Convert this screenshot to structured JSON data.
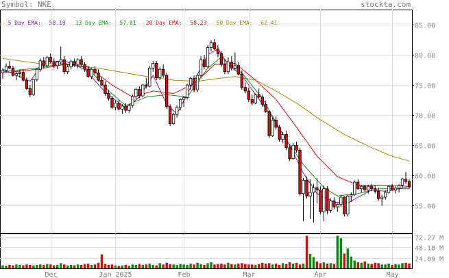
{
  "header": {
    "symbol_text": "Symbol: NKE",
    "site": "stockta.com"
  },
  "legend": {
    "ema5": {
      "label": "5 Day EMA:",
      "value": "58.19",
      "color": "#7a1fa2"
    },
    "ema13": {
      "label": "13 Day EMA:",
      "value": "57.81",
      "color": "#1e8a1e"
    },
    "ema20": {
      "label": "20 Day EMA:",
      "value": "58.23",
      "color": "#d01010"
    },
    "ema50": {
      "label": "50 Day EMA:",
      "value": "62.41",
      "color": "#a08a10"
    }
  },
  "colors": {
    "up_candle": "#ffffff",
    "down_candle": "#cc1111",
    "candle_outline": "#000000",
    "volume_up": "#118811",
    "volume_down": "#cc1111",
    "grid": "#dddddd",
    "frame": "#000000"
  },
  "chart_data": {
    "type": "candlestick",
    "price_axis": {
      "ticks": [
        "85.00",
        "80.00",
        "75.00",
        "70.00",
        "65.00",
        "60.00",
        "55.00"
      ],
      "range": [
        50.5,
        87.5
      ]
    },
    "volume_axis": {
      "ticks": [
        "72.27 M",
        "48.18 M",
        "24.09 M"
      ],
      "range": [
        0,
        80
      ]
    },
    "x_labels": [
      "Dec",
      "Jan 2025",
      "Feb",
      "Mar",
      "Apr",
      "May"
    ],
    "x_label_index": [
      14,
      33,
      53,
      72,
      93,
      114
    ],
    "candles": [
      [
        77.0,
        77.8,
        76.0,
        77.4
      ],
      [
        77.4,
        78.6,
        77.0,
        78.1
      ],
      [
        78.1,
        79.0,
        77.6,
        77.8
      ],
      [
        77.8,
        78.2,
        76.4,
        76.6
      ],
      [
        76.6,
        77.2,
        75.8,
        76.9
      ],
      [
        76.9,
        77.6,
        76.2,
        77.1
      ],
      [
        77.1,
        77.5,
        75.6,
        75.8
      ],
      [
        75.8,
        76.2,
        74.2,
        74.4
      ],
      [
        74.4,
        75.0,
        73.0,
        73.4
      ],
      [
        73.4,
        76.0,
        73.2,
        75.9
      ],
      [
        75.9,
        77.8,
        75.6,
        77.6
      ],
      [
        77.6,
        79.4,
        77.2,
        79.0
      ],
      [
        79.0,
        79.6,
        77.8,
        78.2
      ],
      [
        78.2,
        79.8,
        78.0,
        79.6
      ],
      [
        79.6,
        80.2,
        78.6,
        78.8
      ],
      [
        78.8,
        79.4,
        77.8,
        78.2
      ],
      [
        78.2,
        79.0,
        77.6,
        78.8
      ],
      [
        78.8,
        81.4,
        78.4,
        79.2
      ],
      [
        79.2,
        79.8,
        76.8,
        77.2
      ],
      [
        77.2,
        78.4,
        76.8,
        78.0
      ],
      [
        78.0,
        79.2,
        77.6,
        78.9
      ],
      [
        78.9,
        79.4,
        78.0,
        78.4
      ],
      [
        78.4,
        79.4,
        77.8,
        79.2
      ],
      [
        79.2,
        79.8,
        78.2,
        78.4
      ],
      [
        78.4,
        78.8,
        77.2,
        77.6
      ],
      [
        77.6,
        78.2,
        76.2,
        76.4
      ],
      [
        76.4,
        77.8,
        76.0,
        77.6
      ],
      [
        77.6,
        78.2,
        76.6,
        77.0
      ],
      [
        77.0,
        77.6,
        75.6,
        75.8
      ],
      [
        75.8,
        76.4,
        74.8,
        75.0
      ],
      [
        75.0,
        75.6,
        73.2,
        73.6
      ],
      [
        73.6,
        74.2,
        72.4,
        72.8
      ],
      [
        72.8,
        73.2,
        71.0,
        71.3
      ],
      [
        71.3,
        72.4,
        70.8,
        72.0
      ],
      [
        72.0,
        72.6,
        70.8,
        71.0
      ],
      [
        71.0,
        71.8,
        70.2,
        71.5
      ],
      [
        71.5,
        72.0,
        70.4,
        70.8
      ],
      [
        70.8,
        71.8,
        70.4,
        71.6
      ],
      [
        71.6,
        73.4,
        71.2,
        73.1
      ],
      [
        73.1,
        74.6,
        72.6,
        74.3
      ],
      [
        74.3,
        74.8,
        72.8,
        73.2
      ],
      [
        73.2,
        75.2,
        73.0,
        75.0
      ],
      [
        75.0,
        76.2,
        74.4,
        74.8
      ],
      [
        74.8,
        78.2,
        74.6,
        77.8
      ],
      [
        77.8,
        79.0,
        77.2,
        78.6
      ],
      [
        78.6,
        79.0,
        75.8,
        76.2
      ],
      [
        76.2,
        78.0,
        75.8,
        77.6
      ],
      [
        77.6,
        78.4,
        76.2,
        76.6
      ],
      [
        76.6,
        77.0,
        71.0,
        71.4
      ],
      [
        71.4,
        71.8,
        68.2,
        68.6
      ],
      [
        68.6,
        70.4,
        68.4,
        70.1
      ],
      [
        70.1,
        71.6,
        69.6,
        71.3
      ],
      [
        71.3,
        72.8,
        70.8,
        72.6
      ],
      [
        72.6,
        73.2,
        71.4,
        72.9
      ],
      [
        72.9,
        75.2,
        72.6,
        75.0
      ],
      [
        75.0,
        76.4,
        74.2,
        76.1
      ],
      [
        76.1,
        76.6,
        73.8,
        74.2
      ],
      [
        74.2,
        76.8,
        73.8,
        76.6
      ],
      [
        76.6,
        79.8,
        76.2,
        79.2
      ],
      [
        79.2,
        80.0,
        77.6,
        78.0
      ],
      [
        78.0,
        81.6,
        77.8,
        81.2
      ],
      [
        81.2,
        82.4,
        80.6,
        82.0
      ],
      [
        82.0,
        82.6,
        80.8,
        81.0
      ],
      [
        81.0,
        81.6,
        79.6,
        80.2
      ],
      [
        80.2,
        80.6,
        78.0,
        78.4
      ],
      [
        78.4,
        79.2,
        76.8,
        77.2
      ],
      [
        77.2,
        79.6,
        76.8,
        78.8
      ],
      [
        78.8,
        79.8,
        77.4,
        77.8
      ],
      [
        77.8,
        80.4,
        77.4,
        78.2
      ],
      [
        78.2,
        78.8,
        76.6,
        76.8
      ],
      [
        76.8,
        77.4,
        74.2,
        74.6
      ],
      [
        74.6,
        75.4,
        73.6,
        74.0
      ],
      [
        74.0,
        74.6,
        72.2,
        72.6
      ],
      [
        72.6,
        73.4,
        71.6,
        72.0
      ],
      [
        72.0,
        73.6,
        71.8,
        73.4
      ],
      [
        73.4,
        74.4,
        72.8,
        73.0
      ],
      [
        73.0,
        73.4,
        71.4,
        71.8
      ],
      [
        71.8,
        72.4,
        70.4,
        70.6
      ],
      [
        70.6,
        70.8,
        66.2,
        66.6
      ],
      [
        66.6,
        69.6,
        66.4,
        69.2
      ],
      [
        69.2,
        69.8,
        67.6,
        68.0
      ],
      [
        68.0,
        68.4,
        65.6,
        66.0
      ],
      [
        66.0,
        67.2,
        65.4,
        66.8
      ],
      [
        66.8,
        67.4,
        64.2,
        64.6
      ],
      [
        64.6,
        65.2,
        62.4,
        62.8
      ],
      [
        62.8,
        65.4,
        62.6,
        65.0
      ],
      [
        65.0,
        65.6,
        63.8,
        64.2
      ],
      [
        64.2,
        64.6,
        56.6,
        57.0
      ],
      [
        57.0,
        59.6,
        52.4,
        59.2
      ],
      [
        59.2,
        59.8,
        56.2,
        56.6
      ],
      [
        56.6,
        59.4,
        52.8,
        57.2
      ],
      [
        57.2,
        58.6,
        52.2,
        58.0
      ],
      [
        58.0,
        59.6,
        55.4,
        57.6
      ],
      [
        57.6,
        58.2,
        53.6,
        54.0
      ],
      [
        54.0,
        58.4,
        52.4,
        57.8
      ],
      [
        57.8,
        58.2,
        53.6,
        54.2
      ],
      [
        54.2,
        56.2,
        53.8,
        55.8
      ],
      [
        55.8,
        56.4,
        54.4,
        54.8
      ],
      [
        54.8,
        55.4,
        54.0,
        55.2
      ],
      [
        55.2,
        56.8,
        54.8,
        56.4
      ],
      [
        56.4,
        56.6,
        53.2,
        53.6
      ],
      [
        53.6,
        56.8,
        53.2,
        56.6
      ],
      [
        56.6,
        57.2,
        55.6,
        56.8
      ],
      [
        56.8,
        59.2,
        56.6,
        58.9
      ],
      [
        58.9,
        59.4,
        57.6,
        57.8
      ],
      [
        57.8,
        58.4,
        57.2,
        58.2
      ],
      [
        58.2,
        58.4,
        57.2,
        57.6
      ],
      [
        57.6,
        58.4,
        57.0,
        58.2
      ],
      [
        58.2,
        58.6,
        57.4,
        57.8
      ],
      [
        57.8,
        58.4,
        57.0,
        57.4
      ],
      [
        57.4,
        58.0,
        55.8,
        56.2
      ],
      [
        56.2,
        56.8,
        55.0,
        56.4
      ],
      [
        56.4,
        57.6,
        56.0,
        57.2
      ],
      [
        57.2,
        58.4,
        57.0,
        58.2
      ],
      [
        58.2,
        58.6,
        57.4,
        57.6
      ],
      [
        57.6,
        58.2,
        57.0,
        57.9
      ],
      [
        57.9,
        58.6,
        57.2,
        58.4
      ],
      [
        58.4,
        59.6,
        58.0,
        59.4
      ],
      [
        59.4,
        60.6,
        58.6,
        59.0
      ],
      [
        59.0,
        59.4,
        57.8,
        58.1
      ]
    ],
    "volume": [
      7,
      6,
      8,
      7,
      9,
      8,
      7,
      9,
      8,
      7,
      8,
      9,
      8,
      10,
      9,
      7,
      8,
      12,
      9,
      7,
      8,
      7,
      9,
      8,
      10,
      11,
      8,
      9,
      13,
      32,
      10,
      8,
      9,
      7,
      6,
      7,
      8,
      6,
      9,
      8,
      10,
      8,
      9,
      11,
      8,
      7,
      12,
      9,
      13,
      10,
      9,
      8,
      10,
      9,
      8,
      11,
      9,
      13,
      10,
      8,
      12,
      14,
      9,
      10,
      11,
      9,
      13,
      10,
      9,
      11,
      12,
      10,
      9,
      9,
      8,
      10,
      13,
      11,
      12,
      9,
      11,
      8,
      12,
      10,
      14,
      11,
      13,
      9,
      11,
      75,
      33,
      26,
      16,
      12,
      14,
      11,
      12,
      10,
      75,
      69,
      34,
      46,
      27,
      18,
      14,
      13,
      16,
      11,
      10,
      13,
      12,
      9,
      9,
      11,
      8,
      10,
      9,
      12,
      13,
      11
    ],
    "volume_source_note": "",
    "ema": {
      "ema50": [
        [
          0,
          79.4
        ],
        [
          10,
          78.6
        ],
        [
          20,
          78.4
        ],
        [
          30,
          77.6
        ],
        [
          40,
          76.6
        ],
        [
          50,
          75.8
        ],
        [
          57,
          75.6
        ],
        [
          62,
          76.0
        ],
        [
          68,
          76.4
        ],
        [
          74,
          75.8
        ],
        [
          80,
          74.0
        ],
        [
          86,
          72.0
        ],
        [
          92,
          69.6
        ],
        [
          100,
          66.8
        ],
        [
          108,
          64.6
        ],
        [
          114,
          63.2
        ],
        [
          119,
          62.4
        ]
      ],
      "ema20": [
        [
          0,
          77.0
        ],
        [
          10,
          77.6
        ],
        [
          18,
          78.4
        ],
        [
          25,
          78.0
        ],
        [
          32,
          75.0
        ],
        [
          38,
          73.0
        ],
        [
          44,
          74.0
        ],
        [
          50,
          73.6
        ],
        [
          56,
          75.2
        ],
        [
          62,
          78.4
        ],
        [
          68,
          78.6
        ],
        [
          74,
          75.8
        ],
        [
          80,
          72.6
        ],
        [
          86,
          68.0
        ],
        [
          92,
          63.2
        ],
        [
          98,
          59.8
        ],
        [
          104,
          58.4
        ],
        [
          110,
          58.4
        ],
        [
          115,
          58.3
        ],
        [
          119,
          58.2
        ]
      ],
      "ema13": [
        [
          0,
          77.2
        ],
        [
          10,
          77.8
        ],
        [
          18,
          78.6
        ],
        [
          25,
          77.8
        ],
        [
          31,
          74.0
        ],
        [
          36,
          71.6
        ],
        [
          42,
          73.0
        ],
        [
          48,
          73.4
        ],
        [
          54,
          73.0
        ],
        [
          60,
          77.8
        ],
        [
          64,
          79.6
        ],
        [
          70,
          77.0
        ],
        [
          76,
          72.8
        ],
        [
          82,
          66.8
        ],
        [
          88,
          61.8
        ],
        [
          94,
          58.0
        ],
        [
          98,
          56.6
        ],
        [
          104,
          57.0
        ],
        [
          110,
          57.8
        ],
        [
          119,
          57.8
        ]
      ],
      "ema5": [
        [
          0,
          77.6
        ],
        [
          8,
          75.6
        ],
        [
          12,
          78.8
        ],
        [
          18,
          79.0
        ],
        [
          24,
          77.6
        ],
        [
          30,
          73.8
        ],
        [
          36,
          71.2
        ],
        [
          40,
          73.0
        ],
        [
          44,
          76.6
        ],
        [
          48,
          71.8
        ],
        [
          51,
          70.2
        ],
        [
          55,
          74.6
        ],
        [
          60,
          80.0
        ],
        [
          63,
          81.0
        ],
        [
          66,
          78.4
        ],
        [
          70,
          76.6
        ],
        [
          74,
          73.4
        ],
        [
          79,
          69.6
        ],
        [
          84,
          65.0
        ],
        [
          88,
          60.4
        ],
        [
          92,
          57.0
        ],
        [
          97,
          55.6
        ],
        [
          101,
          55.4
        ],
        [
          104,
          56.4
        ],
        [
          108,
          57.6
        ],
        [
          112,
          57.4
        ],
        [
          116,
          57.8
        ],
        [
          119,
          58.2
        ]
      ]
    }
  }
}
